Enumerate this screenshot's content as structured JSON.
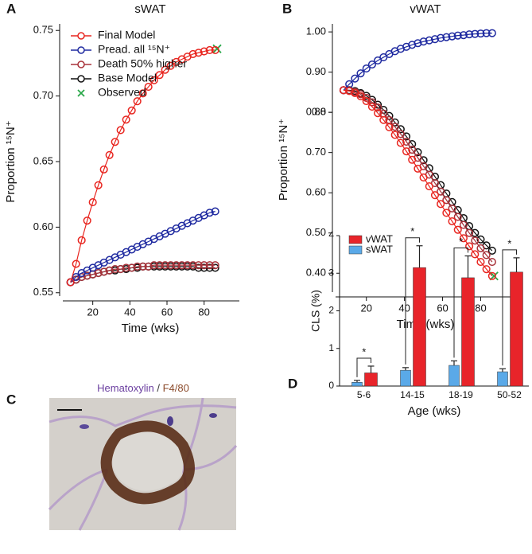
{
  "chart_data": [
    {
      "type": "line",
      "label": "A",
      "title": "sWAT",
      "xlabel": "Time (wks)",
      "ylabel": "Proportion ¹⁵N⁺",
      "x": [
        8,
        11,
        14,
        17,
        20,
        23,
        26,
        29,
        32,
        35,
        38,
        41,
        44,
        47,
        50,
        53,
        56,
        59,
        62,
        65,
        68,
        71,
        74,
        77,
        80,
        83,
        86
      ],
      "series": [
        {
          "name": "Final Model",
          "color": "#e8251f",
          "marker": "o",
          "values": [
            0.558,
            0.572,
            0.59,
            0.605,
            0.619,
            0.632,
            0.644,
            0.655,
            0.665,
            0.674,
            0.682,
            0.689,
            0.696,
            0.702,
            0.707,
            0.712,
            0.716,
            0.72,
            0.723,
            0.726,
            0.728,
            0.73,
            0.732,
            0.733,
            0.734,
            0.735,
            0.735
          ]
        },
        {
          "name": "Pread. all ¹⁵N⁺",
          "color": "#1f2aa0",
          "marker": "o",
          "values": [
            0.558,
            0.562,
            0.565,
            0.567,
            0.569,
            0.571,
            0.573,
            0.575,
            0.577,
            0.579,
            0.581,
            0.583,
            0.585,
            0.587,
            0.589,
            0.591,
            0.593,
            0.595,
            0.597,
            0.599,
            0.601,
            0.603,
            0.605,
            0.607,
            0.609,
            0.611,
            0.612
          ]
        },
        {
          "name": "Death 50% higher",
          "color": "#a8323a",
          "marker": "o",
          "values": [
            0.558,
            0.56,
            0.562,
            0.563,
            0.564,
            0.565,
            0.566,
            0.567,
            0.568,
            0.568,
            0.569,
            0.569,
            0.57,
            0.57,
            0.57,
            0.571,
            0.571,
            0.571,
            0.571,
            0.571,
            0.571,
            0.571,
            0.571,
            0.571,
            0.571,
            0.571,
            0.571
          ]
        },
        {
          "name": "Base Model",
          "color": "#111111",
          "marker": "o",
          "values": [
            0.558,
            0.56,
            0.562,
            0.563,
            0.564,
            0.565,
            0.566,
            0.567,
            0.567,
            0.568,
            0.568,
            0.569,
            0.569,
            0.57,
            0.57,
            0.57,
            0.57,
            0.57,
            0.57,
            0.57,
            0.57,
            0.57,
            0.57,
            0.569,
            0.569,
            0.569,
            0.569
          ]
        },
        {
          "name": "Observed",
          "color": "#2aa84a",
          "marker": "x",
          "x": [
            87
          ],
          "values": [
            0.736
          ]
        }
      ],
      "xlim": [
        3,
        99
      ],
      "xticks": [
        20,
        40,
        60,
        80
      ],
      "ylim": [
        0.545,
        0.755
      ],
      "yticks": [
        0.55,
        {
          "value": 0.6,
          "label": "0.60"
        },
        0.65,
        {
          "value": 0.7,
          "label": "0.70"
        },
        0.75
      ],
      "legend": "upper left"
    },
    {
      "type": "line",
      "label": "B",
      "title": "vWAT",
      "xlabel": "Time (wks)",
      "ylabel": "Proportion ¹⁵N⁺",
      "x": [
        8,
        11,
        14,
        17,
        20,
        23,
        26,
        29,
        32,
        35,
        38,
        41,
        44,
        47,
        50,
        53,
        56,
        59,
        62,
        65,
        68,
        71,
        74,
        77,
        80,
        83,
        86
      ],
      "series": [
        {
          "name": "Final Model",
          "color": "#e8251f",
          "marker": "o",
          "values": [
            0.855,
            0.853,
            0.848,
            0.84,
            0.828,
            0.814,
            0.798,
            0.781,
            0.763,
            0.744,
            0.724,
            0.703,
            0.682,
            0.66,
            0.638,
            0.616,
            0.594,
            0.572,
            0.55,
            0.529,
            0.508,
            0.487,
            0.467,
            0.447,
            0.428,
            0.41,
            0.393
          ]
        },
        {
          "name": "Pread. all ¹⁵N⁺",
          "color": "#1f2aa0",
          "marker": "o",
          "values": [
            0.855,
            0.87,
            0.884,
            0.897,
            0.909,
            0.919,
            0.929,
            0.937,
            0.945,
            0.952,
            0.958,
            0.963,
            0.968,
            0.972,
            0.976,
            0.979,
            0.982,
            0.985,
            0.987,
            0.989,
            0.991,
            0.992,
            0.994,
            0.995,
            0.996,
            0.997,
            0.997
          ]
        },
        {
          "name": "Death 50% higher",
          "color": "#a8323a",
          "marker": "o",
          "values": [
            0.855,
            0.854,
            0.851,
            0.845,
            0.836,
            0.825,
            0.812,
            0.797,
            0.781,
            0.764,
            0.746,
            0.727,
            0.707,
            0.687,
            0.666,
            0.645,
            0.624,
            0.603,
            0.582,
            0.561,
            0.54,
            0.52,
            0.5,
            0.481,
            0.462,
            0.445,
            0.428
          ]
        },
        {
          "name": "Base Model",
          "color": "#111111",
          "marker": "o",
          "values": [
            0.855,
            0.855,
            0.853,
            0.848,
            0.841,
            0.831,
            0.819,
            0.806,
            0.791,
            0.775,
            0.758,
            0.74,
            0.721,
            0.701,
            0.681,
            0.661,
            0.64,
            0.619,
            0.598,
            0.577,
            0.557,
            0.537,
            0.517,
            0.5,
            0.484,
            0.469,
            0.456
          ]
        },
        {
          "name": "Observed",
          "color": "#2aa84a",
          "marker": "x",
          "x": [
            87
          ],
          "values": [
            0.393
          ]
        }
      ],
      "xlim": [
        3,
        99
      ],
      "xticks": [
        20,
        40,
        60,
        80
      ],
      "ylim": [
        0.345,
        1.02
      ],
      "yticks": [
        {
          "value": 0.4,
          "label": "0.40"
        },
        {
          "value": 0.5,
          "label": "0.50"
        },
        {
          "value": 0.6,
          "label": "0.60"
        },
        {
          "value": 0.7,
          "label": "0.70"
        },
        0.8,
        {
          "value": 0.8,
          "label": "0.80"
        },
        {
          "value": 0.9,
          "label": "0.90"
        },
        {
          "value": 1,
          "label": "1.00"
        }
      ]
    },
    {
      "type": "bar",
      "label": "D",
      "xlabel": "Age (wks)",
      "ylabel": "CLS (%)",
      "categories": [
        "5-6",
        "14-15",
        "18-19",
        "50-52"
      ],
      "series": [
        {
          "name": "vWAT",
          "color": "#e8242a",
          "values": [
            0.35,
            3.15,
            2.88,
            3.03
          ],
          "errors": [
            0.18,
            0.58,
            0.58,
            0.38
          ]
        },
        {
          "name": "sWAT",
          "color": "#5aa9e8",
          "values": [
            0.1,
            0.42,
            0.55,
            0.38
          ],
          "errors": [
            0.05,
            0.07,
            0.12,
            0.08
          ]
        }
      ],
      "significance": [
        "*",
        "*",
        "*",
        "*"
      ],
      "ylim": [
        0,
        4
      ],
      "yticks": [
        0,
        1,
        2,
        3,
        4
      ]
    }
  ],
  "panel_c": {
    "label": "C",
    "stain_1": "Hematoxylin",
    "separator": "/",
    "stain_2": "F4/80"
  }
}
